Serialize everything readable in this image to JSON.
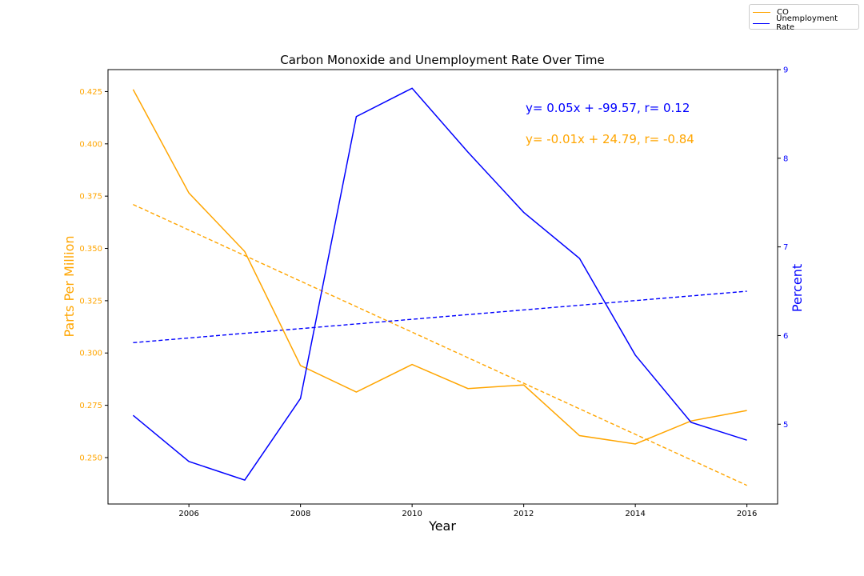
{
  "chart_data": {
    "type": "line",
    "title": "Carbon Monoxide and Unemployment Rate Over Time",
    "xlabel": "Year",
    "ylabel_left": "Parts Per Million",
    "ylabel_right": "Percent",
    "xlim": [
      2004.55,
      2016.55
    ],
    "ylim_left": [
      0.2278,
      0.4355
    ],
    "ylim_right": [
      4.1,
      9.0
    ],
    "x_ticks": [
      2006,
      2008,
      2010,
      2012,
      2014,
      2016
    ],
    "x_tick_labels": [
      "2006",
      "2008",
      "2010",
      "2012",
      "2014",
      "2016"
    ],
    "y_left_ticks": [
      0.25,
      0.275,
      0.3,
      0.325,
      0.35,
      0.375,
      0.4,
      0.425
    ],
    "y_left_tick_labels": [
      "0.250",
      "0.275",
      "0.300",
      "0.325",
      "0.350",
      "0.375",
      "0.400",
      "0.425"
    ],
    "y_right_ticks": [
      5,
      6,
      7,
      8,
      9
    ],
    "y_right_tick_labels": [
      "5",
      "6",
      "7",
      "8",
      "9"
    ],
    "x": [
      2005,
      2006,
      2007,
      2008,
      2009,
      2010,
      2011,
      2012,
      2013,
      2014,
      2015,
      2016
    ],
    "series": [
      {
        "name": "CO",
        "axis": "left",
        "color": "#ffa500",
        "values": [
          0.426,
          0.3765,
          0.3485,
          0.294,
          0.2813,
          0.2945,
          0.283,
          0.2847,
          0.2605,
          0.2565,
          0.2675,
          0.2725
        ]
      },
      {
        "name": "Unemployment Rate",
        "axis": "right",
        "color": "#0000ff",
        "values": [
          5.1,
          4.58,
          4.37,
          5.29,
          8.47,
          8.79,
          8.07,
          7.39,
          6.87,
          5.78,
          5.02,
          4.82
        ]
      }
    ],
    "trendlines": [
      {
        "series": "CO",
        "axis": "left",
        "color": "#ffa500",
        "x": [
          2005,
          2016
        ],
        "y": [
          0.371,
          0.2367
        ],
        "style": "dashed"
      },
      {
        "series": "Unemployment Rate",
        "axis": "right",
        "color": "#0000ff",
        "x": [
          2005,
          2016
        ],
        "y": [
          5.92,
          6.5
        ],
        "style": "dashed"
      }
    ],
    "annotations": [
      {
        "text": "y= 0.05x + -99.57, r= 0.12",
        "color": "#0000ff"
      },
      {
        "text": "y= -0.01x + 24.79, r= -0.84",
        "color": "#ffa500"
      }
    ],
    "legend": {
      "placement": "top-right",
      "entries": [
        {
          "label": "CO",
          "color": "#ffa500"
        },
        {
          "label": "Unemployment Rate",
          "color": "#0000ff"
        }
      ]
    },
    "grid": false
  }
}
